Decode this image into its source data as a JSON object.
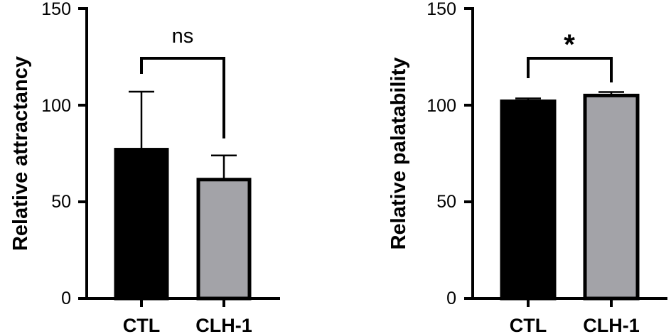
{
  "chart_data": [
    {
      "type": "bar",
      "categories": [
        "CTL",
        "CLH-1"
      ],
      "values": [
        77,
        61.5
      ],
      "errors": [
        30,
        12.5
      ],
      "colors": [
        "#000000",
        "#a3a3a8"
      ],
      "title": "",
      "xlabel": "",
      "ylabel": "Relative attractancy",
      "ylim": [
        0,
        150
      ],
      "yticks": [
        "0",
        "50",
        "100",
        "150"
      ],
      "significance": "ns",
      "grid": false
    },
    {
      "type": "bar",
      "categories": [
        "CTL",
        "CLH-1"
      ],
      "values": [
        102,
        105
      ],
      "errors": [
        1.5,
        1.8
      ],
      "colors": [
        "#000000",
        "#a3a3a8"
      ],
      "title": "",
      "xlabel": "",
      "ylabel": "Relative palatability",
      "ylim": [
        0,
        150
      ],
      "yticks": [
        "0",
        "50",
        "100",
        "150"
      ],
      "significance": "*",
      "grid": false
    }
  ]
}
